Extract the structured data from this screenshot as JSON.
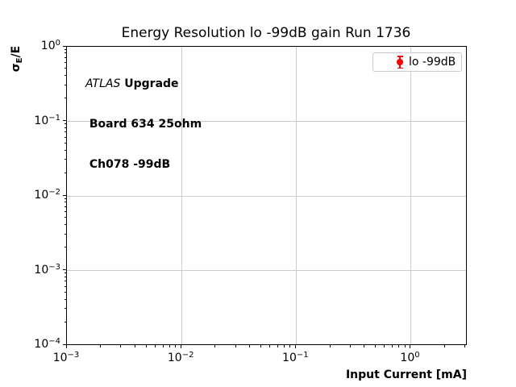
{
  "chart_data": {
    "type": "scatter",
    "title": "Energy Resolution lo -99dB gain Run 1736",
    "xlabel": "Input Current [mA]",
    "ylabel": "σ_E/E",
    "ylabel_parts": {
      "sigma": "σ",
      "sub": "E",
      "rest": "/E"
    },
    "xscale": "log",
    "yscale": "log",
    "xlim": [
      0.001,
      3.08
    ],
    "ylim": [
      0.0001,
      1.0
    ],
    "grid": true,
    "legend_position": "upper right",
    "x_ticks": {
      "values": [
        0.001,
        0.01,
        0.1,
        1
      ],
      "labels": [
        {
          "base": "10",
          "exp": "−3"
        },
        {
          "base": "10",
          "exp": "−2"
        },
        {
          "base": "10",
          "exp": "−1"
        },
        {
          "base": "10",
          "exp": "0"
        }
      ]
    },
    "y_ticks": {
      "values": [
        1,
        0.1,
        0.01,
        0.001,
        0.0001
      ],
      "labels": [
        {
          "base": "10",
          "exp": "0"
        },
        {
          "base": "10",
          "exp": "−1"
        },
        {
          "base": "10",
          "exp": "−2"
        },
        {
          "base": "10",
          "exp": "−3"
        },
        {
          "base": "10",
          "exp": "−4"
        }
      ]
    },
    "series": [
      {
        "name": "lo -99dB",
        "color": "#ff0000",
        "marker": "circle",
        "errorbars": true,
        "x": [],
        "y": []
      }
    ]
  },
  "annotation": {
    "line1_italic": "ATLAS",
    "line1_bold": " Upgrade",
    "line2": " Board 634 25ohm",
    "line3": " Ch078 -99dB"
  },
  "legend": {
    "label": "lo -99dB",
    "marker_color": "#ff0000"
  },
  "colors": {
    "grid": "#cccccc",
    "spine": "#000000",
    "tick": "#000000",
    "legend_border": "#cccccc"
  }
}
